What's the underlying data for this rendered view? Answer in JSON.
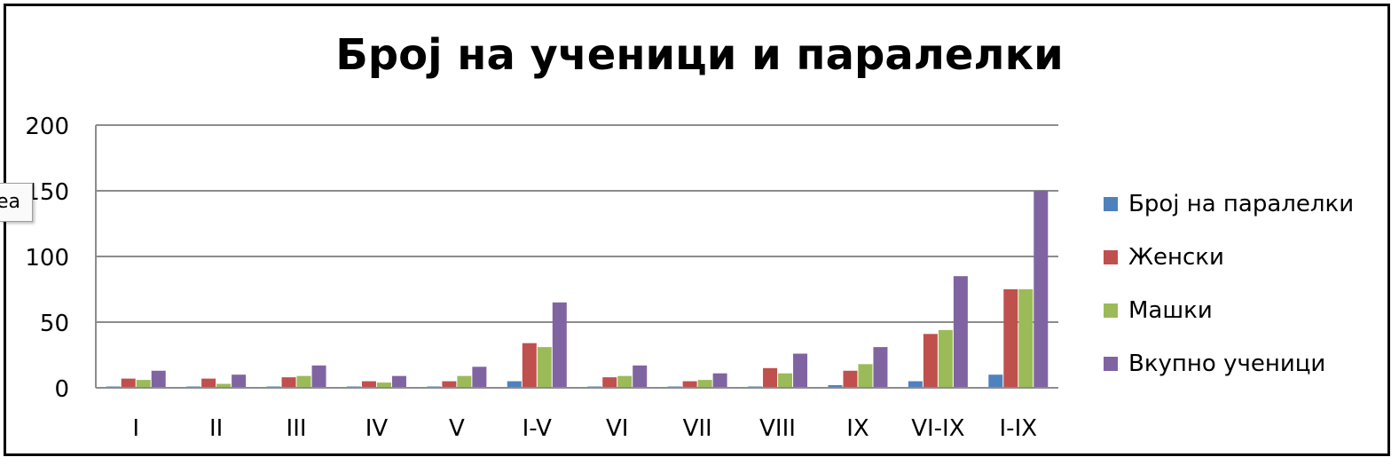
{
  "tooltip": {
    "text": "ea"
  },
  "chart_data": {
    "type": "bar",
    "title": "Број на ученици и паралелки",
    "xlabel": "",
    "ylabel": "",
    "ylim": [
      0,
      200
    ],
    "yticks": [
      "0",
      "50",
      "100",
      "150",
      "200"
    ],
    "grid": true,
    "legend_position": "right",
    "categories": [
      "I",
      "II",
      "III",
      "IV",
      "V",
      "I-V",
      "VI",
      "VII",
      "VIII",
      "IX",
      "VI-IX",
      "I-IX"
    ],
    "series": [
      {
        "name": "Број на паралелки",
        "color": "#4f81bd",
        "values": [
          1,
          1,
          1,
          1,
          1,
          5,
          1,
          1,
          1,
          2,
          5,
          10
        ]
      },
      {
        "name": "Женски",
        "color": "#c0504d",
        "values": [
          7,
          7,
          8,
          5,
          5,
          34,
          8,
          5,
          15,
          13,
          41,
          75
        ]
      },
      {
        "name": "Машки",
        "color": "#9bbb59",
        "values": [
          6,
          3,
          9,
          4,
          9,
          31,
          9,
          6,
          11,
          18,
          44,
          75
        ]
      },
      {
        "name": "Вкупно ученици",
        "color": "#8064a2",
        "values": [
          13,
          10,
          17,
          9,
          16,
          65,
          17,
          11,
          26,
          31,
          85,
          150
        ]
      }
    ]
  }
}
